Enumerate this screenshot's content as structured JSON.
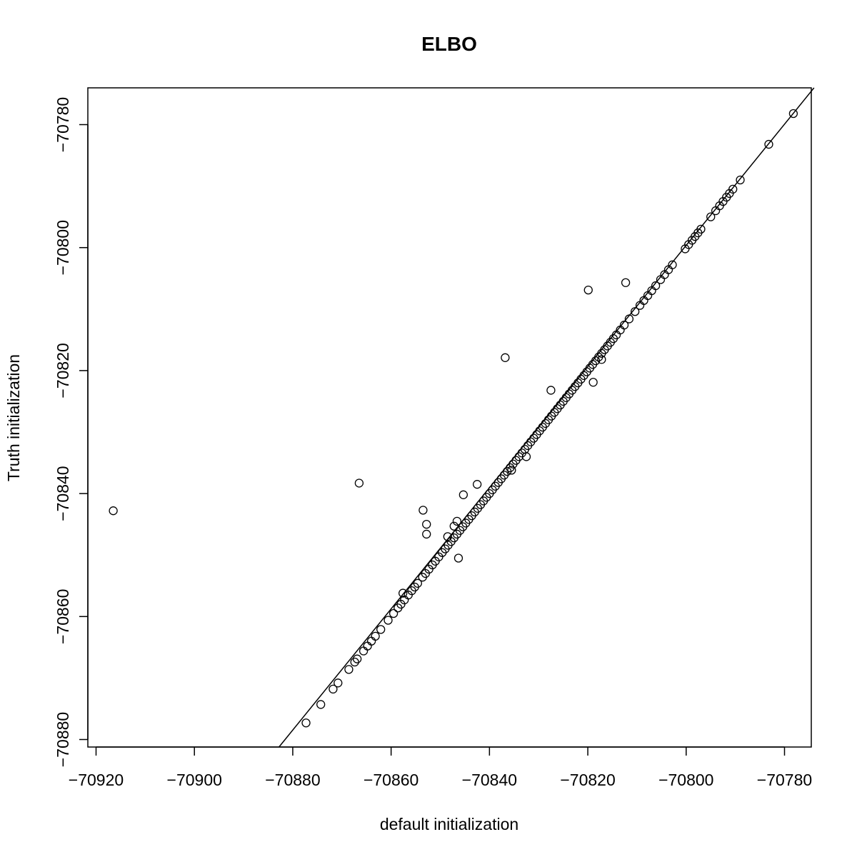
{
  "chart_data": {
    "type": "scatter",
    "title": "ELBO",
    "xlabel": "default initialization",
    "ylabel": "Truth initialization",
    "xlim": [
      -70922,
      -70774
    ],
    "ylim": [
      -70881,
      -70774
    ],
    "xticks": [
      -70920,
      -70900,
      -70880,
      -70860,
      -70840,
      -70820,
      -70800,
      -70780
    ],
    "yticks": [
      -70880,
      -70860,
      -70840,
      -70820,
      -70800,
      -70780
    ],
    "xtick_labels": [
      "−70920",
      "−70900",
      "−70880",
      "−70860",
      "−70840",
      "−70820",
      "−70800",
      "−70780"
    ],
    "ytick_labels": [
      "−70880",
      "−70860",
      "−70840",
      "−70820",
      "−70800",
      "−70780"
    ],
    "reference_line": {
      "intercept": 0,
      "slope": 1
    },
    "marker": "open-circle",
    "grid": false,
    "outliers": [
      {
        "x": -70916.5,
        "y": -70842.8
      },
      {
        "x": -70866.5,
        "y": -70838.3
      },
      {
        "x": -70853.5,
        "y": -70842.7
      },
      {
        "x": -70852.8,
        "y": -70845.0
      },
      {
        "x": -70852.8,
        "y": -70846.6
      },
      {
        "x": -70848.5,
        "y": -70847.0
      },
      {
        "x": -70847.2,
        "y": -70845.3
      },
      {
        "x": -70846.6,
        "y": -70844.5
      },
      {
        "x": -70846.3,
        "y": -70850.5
      },
      {
        "x": -70845.3,
        "y": -70840.2
      },
      {
        "x": -70842.5,
        "y": -70838.5
      },
      {
        "x": -70836.8,
        "y": -70817.9
      },
      {
        "x": -70827.5,
        "y": -70823.2
      },
      {
        "x": -70819.9,
        "y": -70806.9
      },
      {
        "x": -70818.9,
        "y": -70821.9
      },
      {
        "x": -70817.2,
        "y": -70818.2
      },
      {
        "x": -70812.3,
        "y": -70805.7
      },
      {
        "x": -70832.5,
        "y": -70834.0
      },
      {
        "x": -70835.5,
        "y": -70836.2
      },
      {
        "x": -70857.6,
        "y": -70856.2
      }
    ],
    "diagonal_points": [
      -70877.3,
      -70874.3,
      -70871.8,
      -70870.8,
      -70868.6,
      -70867.4,
      -70866.9,
      -70865.6,
      -70864.8,
      -70864.0,
      -70863.2,
      -70862.1,
      -70860.6,
      -70859.5,
      -70858.6,
      -70858.0,
      -70857.3,
      -70856.5,
      -70855.8,
      -70855.2,
      -70854.6,
      -70853.6,
      -70853.0,
      -70852.3,
      -70851.6,
      -70851.0,
      -70850.3,
      -70849.6,
      -70849.0,
      -70848.4,
      -70847.8,
      -70847.2,
      -70846.6,
      -70846.0,
      -70845.4,
      -70844.8,
      -70844.2,
      -70843.6,
      -70843.0,
      -70842.4,
      -70841.8,
      -70841.2,
      -70840.6,
      -70840.0,
      -70839.4,
      -70838.8,
      -70838.2,
      -70837.6,
      -70837.0,
      -70836.4,
      -70835.8,
      -70835.2,
      -70834.6,
      -70834.0,
      -70833.4,
      -70832.8,
      -70832.2,
      -70831.6,
      -70831.0,
      -70830.4,
      -70829.8,
      -70829.2,
      -70828.6,
      -70828.0,
      -70827.4,
      -70826.8,
      -70826.2,
      -70825.6,
      -70825.0,
      -70824.4,
      -70823.8,
      -70823.2,
      -70822.6,
      -70822.0,
      -70821.4,
      -70820.8,
      -70820.2,
      -70819.6,
      -70819.0,
      -70818.4,
      -70817.8,
      -70817.2,
      -70816.6,
      -70816.0,
      -70815.4,
      -70814.8,
      -70814.2,
      -70813.4,
      -70812.6,
      -70811.6,
      -70810.4,
      -70809.4,
      -70808.6,
      -70807.8,
      -70807.0,
      -70806.2,
      -70805.2,
      -70804.4,
      -70803.6,
      -70802.8,
      -70800.2,
      -70799.5,
      -70798.8,
      -70798.2,
      -70797.6,
      -70797.0,
      -70795.0,
      -70794.0,
      -70793.2,
      -70792.5,
      -70791.8,
      -70791.2,
      -70790.5,
      -70789.0,
      -70783.2,
      -70778.2
    ]
  }
}
